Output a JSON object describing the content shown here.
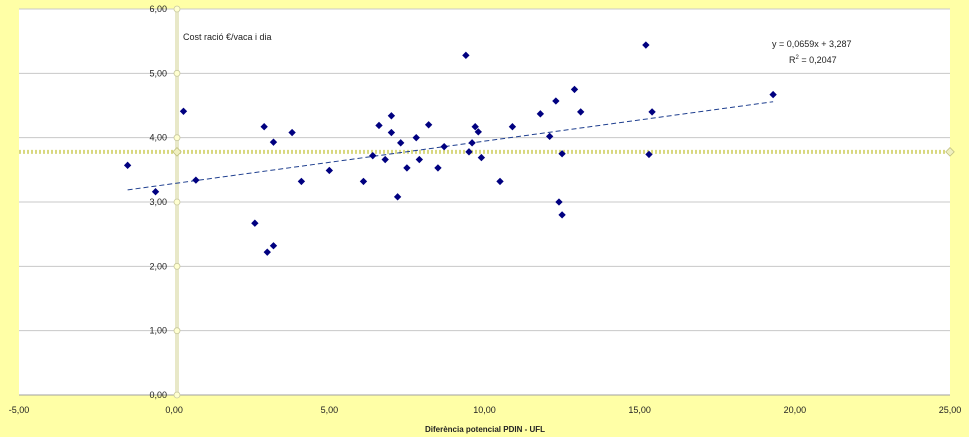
{
  "chart_data": {
    "type": "scatter",
    "title": "",
    "xlabel": "Diferència potencial PDIN - UFL",
    "ylabel": "Cost ració €/vaca i dia",
    "xlim": [
      -5,
      25
    ],
    "ylim": [
      0,
      6
    ],
    "x_ticks": [
      "-5,00",
      "0,00",
      "5,00",
      "10,00",
      "15,00",
      "20,00",
      "25,00"
    ],
    "y_ticks": [
      "0,00",
      "1,00",
      "2,00",
      "3,00",
      "4,00",
      "5,00",
      "6,00"
    ],
    "grid": "horizontal",
    "point_color": "#000080",
    "trend_color": "#1f3f8f",
    "mean_line_color": "#d8d880",
    "series": [
      {
        "points": [
          [
            -1.5,
            3.57
          ],
          [
            -0.6,
            3.16
          ],
          [
            0.3,
            4.41
          ],
          [
            0.7,
            3.34
          ],
          [
            2.6,
            2.67
          ],
          [
            2.9,
            4.17
          ],
          [
            3.0,
            2.22
          ],
          [
            3.2,
            3.93
          ],
          [
            3.2,
            2.32
          ],
          [
            3.8,
            4.08
          ],
          [
            4.1,
            3.32
          ],
          [
            5.0,
            3.49
          ],
          [
            6.1,
            3.32
          ],
          [
            6.4,
            3.72
          ],
          [
            6.6,
            4.19
          ],
          [
            6.8,
            3.66
          ],
          [
            7.0,
            4.08
          ],
          [
            7.0,
            4.34
          ],
          [
            7.2,
            3.08
          ],
          [
            7.3,
            3.92
          ],
          [
            7.5,
            3.53
          ],
          [
            7.8,
            4.0
          ],
          [
            7.9,
            3.66
          ],
          [
            8.2,
            4.2
          ],
          [
            8.5,
            3.53
          ],
          [
            8.7,
            3.86
          ],
          [
            9.4,
            5.28
          ],
          [
            9.5,
            3.78
          ],
          [
            9.6,
            3.92
          ],
          [
            9.7,
            4.17
          ],
          [
            9.8,
            4.09
          ],
          [
            9.9,
            3.69
          ],
          [
            10.5,
            3.32
          ],
          [
            10.9,
            4.17
          ],
          [
            11.8,
            4.37
          ],
          [
            12.1,
            4.02
          ],
          [
            12.3,
            4.57
          ],
          [
            12.4,
            3.0
          ],
          [
            12.5,
            2.8
          ],
          [
            12.5,
            3.75
          ],
          [
            12.9,
            4.75
          ],
          [
            13.1,
            4.4
          ],
          [
            15.2,
            5.44
          ],
          [
            15.3,
            3.74
          ],
          [
            15.4,
            4.4
          ],
          [
            19.3,
            4.67
          ]
        ]
      }
    ],
    "trendline": {
      "slope": 0.0659,
      "intercept": 3.287,
      "x_range": [
        -1.5,
        19.3
      ],
      "style": "dashed"
    },
    "mean_line": {
      "y": 3.78
    },
    "annotations": {
      "equation": "y = 0,0659x + 3,287",
      "r2": "R",
      "r2_exp": "2",
      "r2_value": " = 0,2047"
    }
  }
}
